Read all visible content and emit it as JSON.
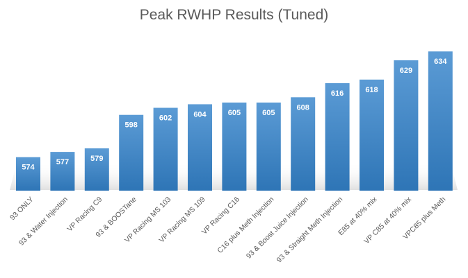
{
  "chart_data": {
    "type": "bar",
    "title": "Peak RWHP Results (Tuned)",
    "xlabel": "",
    "ylabel": "",
    "categories": [
      "93 ONLY",
      "93 & Water Injection",
      "VP Racing C9",
      "93 & BOOSTane",
      "VP Racing MS 103",
      "VP Racing MS 109",
      "VP Racing C16",
      "C16 plus Meth Injection",
      "93 & Boost Juice Injection",
      "93 & Straight Meth Injection",
      "E85 at 40% mix",
      "VP C85 at 40% mix",
      "VPC85 plus Meth"
    ],
    "values": [
      574,
      577,
      579,
      598,
      602,
      604,
      605,
      605,
      608,
      616,
      618,
      629,
      634
    ],
    "data_labels": [
      "574",
      "577",
      "579",
      "598",
      "602",
      "604",
      "605",
      "605",
      "608",
      "616",
      "618",
      "629",
      "634"
    ],
    "ylim": [
      555,
      638
    ],
    "grid": false,
    "legend": "none",
    "colors": {
      "bar_top": "#5b9bd5",
      "bar_bottom": "#2e75b6",
      "floor": "#e0e0e0",
      "text": "#595959",
      "data_label": "#ffffff"
    }
  }
}
